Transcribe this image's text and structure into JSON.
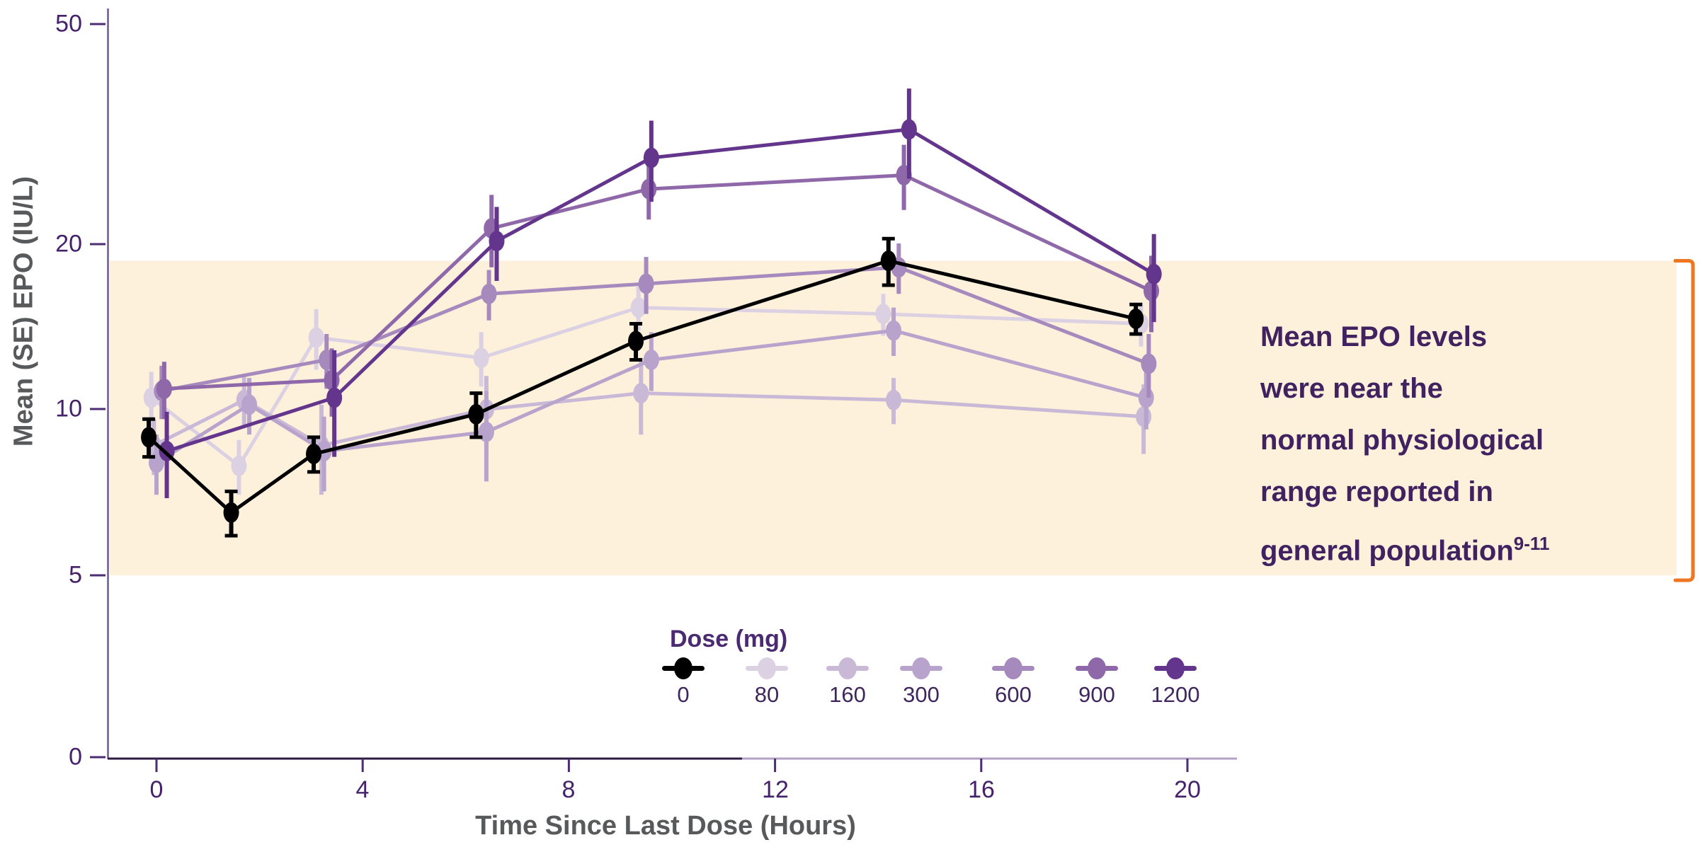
{
  "chart_data": {
    "type": "line",
    "title": "",
    "xlabel": "Time Since Last Dose (Hours)",
    "ylabel": "Mean (SE) EPO (IU/L)",
    "x_ticks": [
      0,
      4,
      8,
      12,
      16,
      20
    ],
    "x_tick_labels": [
      "0",
      "4",
      "8",
      "12",
      "16",
      "20"
    ],
    "y_ticks": [
      50,
      20,
      10,
      5,
      0
    ],
    "y_tick_labels": [
      "50",
      "20",
      "10",
      "5",
      "0"
    ],
    "y_scale": "log10 between 5 and 50, axis break down to 0",
    "xlim": [
      -1,
      21
    ],
    "grid": "off",
    "legend_title": "Dose (mg)",
    "legend_position": "bottom-center",
    "normal_range_band": {
      "y_from": 5,
      "y_to": 18.6,
      "fill_color": "#fdf1dc",
      "bracket_color": "#ee7623",
      "meaning": "normal physiological EPO range"
    },
    "series": [
      {
        "name": "0",
        "color": "#000000",
        "error_caps": true,
        "points": [
          {
            "t": -0.15,
            "epo": 8.9,
            "se": 0.7
          },
          {
            "t": 1.45,
            "epo": 6.5,
            "se": 0.6
          },
          {
            "t": 3.05,
            "epo": 8.3,
            "se": 0.6
          },
          {
            "t": 6.2,
            "epo": 9.8,
            "se": 0.9
          },
          {
            "t": 9.3,
            "epo": 13.3,
            "se": 1.0
          },
          {
            "t": 14.2,
            "epo": 18.6,
            "se": 1.8
          },
          {
            "t": 19.0,
            "epo": 14.6,
            "se": 0.9
          }
        ]
      },
      {
        "name": "80",
        "color": "#dcd1e3",
        "error_caps": false,
        "points": [
          {
            "t": -0.1,
            "epo": 10.5,
            "se": 1.2
          },
          {
            "t": 1.6,
            "epo": 7.9,
            "se": 0.9
          },
          {
            "t": 3.1,
            "epo": 13.5,
            "se": 1.7
          },
          {
            "t": 6.3,
            "epo": 12.4,
            "se": 1.4
          },
          {
            "t": 9.35,
            "epo": 15.3,
            "se": 1.4
          },
          {
            "t": 14.1,
            "epo": 14.9,
            "se": 1.3
          },
          {
            "t": 19.1,
            "epo": 14.3,
            "se": 1.3
          }
        ]
      },
      {
        "name": "160",
        "color": "#c9b9d7",
        "error_caps": false,
        "points": [
          {
            "t": -0.05,
            "epo": 8.6,
            "se": 1.0
          },
          {
            "t": 1.7,
            "epo": 10.4,
            "se": 1.1
          },
          {
            "t": 3.2,
            "epo": 8.6,
            "se": 1.6
          },
          {
            "t": 6.4,
            "epo": 10.0,
            "se": 1.5
          },
          {
            "t": 9.4,
            "epo": 10.7,
            "se": 1.7
          },
          {
            "t": 14.3,
            "epo": 10.4,
            "se": 1.0
          },
          {
            "t": 19.15,
            "epo": 9.7,
            "se": 1.4
          }
        ]
      },
      {
        "name": "300",
        "color": "#b7a3cb",
        "error_caps": false,
        "points": [
          {
            "t": 0.0,
            "epo": 8.0,
            "se": 1.0
          },
          {
            "t": 1.8,
            "epo": 10.2,
            "se": 1.2
          },
          {
            "t": 3.25,
            "epo": 8.4,
            "se": 1.3
          },
          {
            "t": 6.4,
            "epo": 9.1,
            "se": 1.7
          },
          {
            "t": 9.6,
            "epo": 12.3,
            "se": 1.5
          },
          {
            "t": 14.3,
            "epo": 13.9,
            "se": 1.4
          },
          {
            "t": 19.2,
            "epo": 10.5,
            "se": 1.3
          }
        ]
      },
      {
        "name": "600",
        "color": "#a689bd",
        "error_caps": false,
        "points": [
          {
            "t": 0.1,
            "epo": 10.8,
            "se": 1.2
          },
          {
            "t": 3.3,
            "epo": 12.3,
            "se": 1.4
          },
          {
            "t": 6.45,
            "epo": 16.2,
            "se": 1.7
          },
          {
            "t": 9.5,
            "epo": 16.9,
            "se": 2.0
          },
          {
            "t": 14.4,
            "epo": 18.1,
            "se": 1.9
          },
          {
            "t": 19.25,
            "epo": 12.1,
            "se": 1.6
          }
        ]
      },
      {
        "name": "900",
        "color": "#8f68a9",
        "error_caps": false,
        "points": [
          {
            "t": 0.15,
            "epo": 10.9,
            "se": 1.3
          },
          {
            "t": 3.4,
            "epo": 11.3,
            "se": 1.6
          },
          {
            "t": 6.5,
            "epo": 21.3,
            "se": 3.2
          },
          {
            "t": 9.55,
            "epo": 25.1,
            "se": 3.0
          },
          {
            "t": 14.5,
            "epo": 26.6,
            "se": 3.6
          },
          {
            "t": 19.3,
            "epo": 16.4,
            "se": 2.6
          }
        ]
      },
      {
        "name": "1200",
        "color": "#64358c",
        "error_caps": false,
        "points": [
          {
            "t": 0.2,
            "epo": 8.4,
            "se": 1.5
          },
          {
            "t": 3.45,
            "epo": 10.5,
            "se": 2.3
          },
          {
            "t": 6.6,
            "epo": 20.2,
            "se": 3.1
          },
          {
            "t": 9.6,
            "epo": 28.6,
            "se": 4.8
          },
          {
            "t": 14.6,
            "epo": 32.2,
            "se": 6.0
          },
          {
            "t": 19.35,
            "epo": 17.6,
            "se": 3.2
          }
        ]
      }
    ]
  },
  "annotation": {
    "lines": [
      "Mean EPO levels",
      "were near the",
      "normal physiological",
      "range reported in",
      "general population"
    ],
    "reference_sup": "9-11"
  },
  "colors": {
    "axis_line": "#705694",
    "x_spine_dark": "#2d1a42",
    "x_spine_light": "#b3a2c4",
    "tick_mark": "#4c2d74",
    "tick_label": "#45226b",
    "axis_title": "#58595b",
    "legend_title": "#4a2a70",
    "annotation_text": "#41215f",
    "band_fill": "#fdf1dc",
    "bracket": "#ee7623"
  }
}
